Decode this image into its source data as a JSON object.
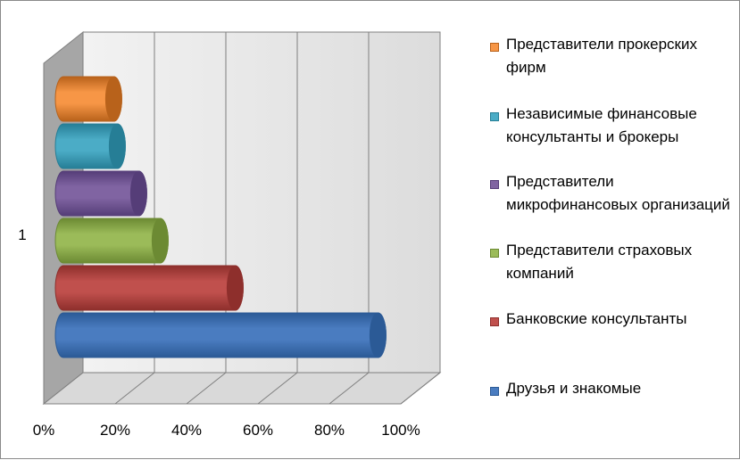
{
  "chart_data": {
    "type": "bar",
    "orientation": "horizontal",
    "style": "3d-cylinder",
    "categories": [
      "1"
    ],
    "series": [
      {
        "name": "Друзья и знакомые",
        "values": [
          0.88
        ],
        "color": "#4a7cc0",
        "dark": "#2b5a96"
      },
      {
        "name": "Банковские консультанты",
        "values": [
          0.48
        ],
        "color": "#c0504d",
        "dark": "#8e2f2c"
      },
      {
        "name": "Представители страховых компаний",
        "values": [
          0.27
        ],
        "color": "#9bbb59",
        "dark": "#6c8a33"
      },
      {
        "name": "Представители микрофинансовых организаций",
        "values": [
          0.21
        ],
        "color": "#8064a2",
        "dark": "#553d78"
      },
      {
        "name": "Независимые финансовые консультанты и брокеры",
        "values": [
          0.15
        ],
        "color": "#4bacc6",
        "dark": "#267e96"
      },
      {
        "name": "Представители прокерских фирм",
        "values": [
          0.14
        ],
        "color": "#f79646",
        "dark": "#b8621b"
      }
    ],
    "xlim": [
      0,
      1
    ],
    "xticks": [
      "0%",
      "20%",
      "40%",
      "60%",
      "80%",
      "100%"
    ],
    "grid": true,
    "legend_position": "right"
  }
}
